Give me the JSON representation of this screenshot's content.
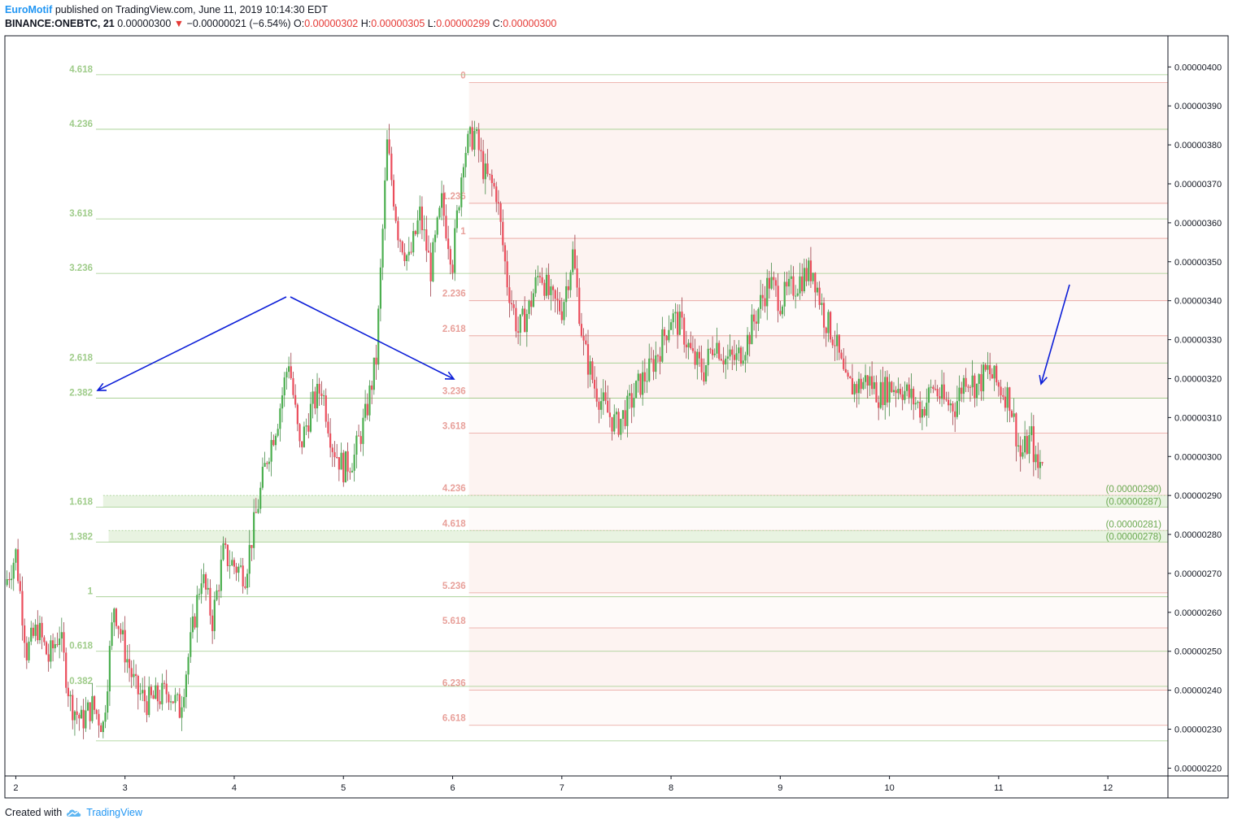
{
  "header": {
    "author": "EuroMotif",
    "published_text": "published on TradingView.com, June 11, 2019 10:14:30 EDT",
    "symbol": "BINANCE:ONEBTC, 21",
    "last": "0.00000300",
    "change_arrow": "▼",
    "change": "−0.00000021 (−6.54%)",
    "o_label": "O:",
    "o_value": "0.00000302",
    "h_label": "H:",
    "h_value": "0.00000305",
    "l_label": "L:",
    "l_value": "0.00000299",
    "c_label": "C:",
    "c_value": "0.00000300"
  },
  "footer": {
    "created_with": "Created with",
    "brand": "TradingView",
    "logo_icon": "tradingview-cloud-icon"
  },
  "colors": {
    "up": "#53b987",
    "up_body": "#4caf50",
    "down": "#eb4d5c",
    "fib_green": "#9fcc8a",
    "fib_red": "#e8a09a",
    "arrow": "#0d1fd8",
    "axis": "#131722"
  },
  "chart_data": {
    "type": "candlestick",
    "y_axis": {
      "min": 2.18e-06,
      "max": 4.08e-06,
      "ticks": [
        "0.00000400",
        "0.00000390",
        "0.00000380",
        "0.00000370",
        "0.00000360",
        "0.00000350",
        "0.00000340",
        "0.00000330",
        "0.00000320",
        "0.00000310",
        "0.00000300",
        "0.00000290",
        "0.00000280",
        "0.00000270",
        "0.00000260",
        "0.00000250",
        "0.00000240",
        "0.00000230",
        "0.00000220"
      ]
    },
    "x_axis": {
      "min": 1.9,
      "max": 12.55,
      "ticks": [
        "2",
        "3",
        "4",
        "5",
        "6",
        "7",
        "8",
        "9",
        "10",
        "11",
        "12"
      ]
    },
    "price_path": [
      [
        1.9,
        2.67e-06
      ],
      [
        2.0,
        2.75e-06
      ],
      [
        2.1,
        2.5e-06
      ],
      [
        2.2,
        2.56e-06
      ],
      [
        2.3,
        2.48e-06
      ],
      [
        2.4,
        2.55e-06
      ],
      [
        2.5,
        2.37e-06
      ],
      [
        2.6,
        2.32e-06
      ],
      [
        2.7,
        2.36e-06
      ],
      [
        2.8,
        2.31e-06
      ],
      [
        2.9,
        2.62e-06
      ],
      [
        3.0,
        2.5e-06
      ],
      [
        3.1,
        2.4e-06
      ],
      [
        3.2,
        2.37e-06
      ],
      [
        3.3,
        2.38e-06
      ],
      [
        3.4,
        2.4e-06
      ],
      [
        3.5,
        2.35e-06
      ],
      [
        3.6,
        2.52e-06
      ],
      [
        3.7,
        2.7e-06
      ],
      [
        3.8,
        2.58e-06
      ],
      [
        3.9,
        2.75e-06
      ],
      [
        4.0,
        2.72e-06
      ],
      [
        4.1,
        2.7e-06
      ],
      [
        4.2,
        2.85e-06
      ],
      [
        4.3,
        3e-06
      ],
      [
        4.4,
        3.1e-06
      ],
      [
        4.5,
        3.25e-06
      ],
      [
        4.6,
        3.02e-06
      ],
      [
        4.7,
        3.12e-06
      ],
      [
        4.8,
        3.18e-06
      ],
      [
        4.9,
        3.03e-06
      ],
      [
        5.0,
        2.97e-06
      ],
      [
        5.1,
        3e-06
      ],
      [
        5.2,
        3.1e-06
      ],
      [
        5.3,
        3.25e-06
      ],
      [
        5.4,
        3.8e-06
      ],
      [
        5.5,
        3.58e-06
      ],
      [
        5.6,
        3.5e-06
      ],
      [
        5.7,
        3.62e-06
      ],
      [
        5.8,
        3.48e-06
      ],
      [
        5.9,
        3.65e-06
      ],
      [
        6.0,
        3.5e-06
      ],
      [
        6.1,
        3.78e-06
      ],
      [
        6.2,
        3.83e-06
      ],
      [
        6.3,
        3.72e-06
      ],
      [
        6.4,
        3.68e-06
      ],
      [
        6.5,
        3.45e-06
      ],
      [
        6.6,
        3.32e-06
      ],
      [
        6.7,
        3.38e-06
      ],
      [
        6.8,
        3.48e-06
      ],
      [
        6.9,
        3.4e-06
      ],
      [
        7.0,
        3.38e-06
      ],
      [
        7.1,
        3.52e-06
      ],
      [
        7.2,
        3.28e-06
      ],
      [
        7.3,
        3.18e-06
      ],
      [
        7.4,
        3.12e-06
      ],
      [
        7.5,
        3.08e-06
      ],
      [
        7.6,
        3.12e-06
      ],
      [
        7.7,
        3.18e-06
      ],
      [
        7.8,
        3.22e-06
      ],
      [
        7.9,
        3.28e-06
      ],
      [
        8.0,
        3.36e-06
      ],
      [
        8.1,
        3.33e-06
      ],
      [
        8.2,
        3.25e-06
      ],
      [
        8.3,
        3.22e-06
      ],
      [
        8.4,
        3.3e-06
      ],
      [
        8.5,
        3.25e-06
      ],
      [
        8.6,
        3.25e-06
      ],
      [
        8.7,
        3.3e-06
      ],
      [
        8.8,
        3.38e-06
      ],
      [
        8.9,
        3.45e-06
      ],
      [
        9.0,
        3.4e-06
      ],
      [
        9.1,
        3.43e-06
      ],
      [
        9.2,
        3.46e-06
      ],
      [
        9.3,
        3.48e-06
      ],
      [
        9.4,
        3.36e-06
      ],
      [
        9.5,
        3.3e-06
      ],
      [
        9.6,
        3.18e-06
      ],
      [
        9.7,
        3.18e-06
      ],
      [
        9.8,
        3.2e-06
      ],
      [
        9.9,
        3.16e-06
      ],
      [
        10.0,
        3.18e-06
      ],
      [
        10.1,
        3.18e-06
      ],
      [
        10.2,
        3.15e-06
      ],
      [
        10.3,
        3.12e-06
      ],
      [
        10.4,
        3.18e-06
      ],
      [
        10.5,
        3.14e-06
      ],
      [
        10.6,
        3.13e-06
      ],
      [
        10.7,
        3.21e-06
      ],
      [
        10.8,
        3.18e-06
      ],
      [
        10.9,
        3.22e-06
      ],
      [
        11.0,
        3.18e-06
      ],
      [
        11.1,
        3.15e-06
      ],
      [
        11.2,
        3e-06
      ],
      [
        11.3,
        3.05e-06
      ],
      [
        11.35,
        2.96e-06
      ],
      [
        11.4,
        3e-06
      ]
    ],
    "fib_extension_green": [
      {
        "label": "4.618",
        "value": 3.98e-06
      },
      {
        "label": "4.236",
        "value": 3.84e-06
      },
      {
        "label": "3.618",
        "value": 3.61e-06
      },
      {
        "label": "3.236",
        "value": 3.47e-06
      },
      {
        "label": "2.618",
        "value": 3.24e-06
      },
      {
        "label": "2.382",
        "value": 3.15e-06
      },
      {
        "label": "1.618",
        "value": 2.87e-06
      },
      {
        "label": "1.382",
        "value": 2.78e-06
      },
      {
        "label": "1",
        "value": 2.64e-06
      },
      {
        "label": "0.618",
        "value": 2.5e-06
      },
      {
        "label": "0.382",
        "value": 2.41e-06
      },
      {
        "label": "",
        "value": 2.27e-06
      }
    ],
    "fib_extension_red": [
      {
        "label": "0",
        "value": 3.96e-06
      },
      {
        "label": "1.236",
        "value": 3.65e-06
      },
      {
        "label": "1",
        "value": 3.56e-06
      },
      {
        "label": "2.236",
        "value": 3.4e-06
      },
      {
        "label": "2.618",
        "value": 3.31e-06
      },
      {
        "label": "3.236",
        "value": 3.15e-06
      },
      {
        "label": "3.618",
        "value": 3.06e-06
      },
      {
        "label": "4.236",
        "value": 2.9e-06
      },
      {
        "label": "4.618",
        "value": 2.81e-06
      },
      {
        "label": "5.236",
        "value": 2.65e-06
      },
      {
        "label": "5.618",
        "value": 2.56e-06
      },
      {
        "label": "6.236",
        "value": 2.4e-06
      },
      {
        "label": "6.618",
        "value": 2.31e-06
      }
    ],
    "zones": [
      {
        "from": 2.87e-06,
        "to": 2.9e-06,
        "label_top": "(0.00000290)",
        "label_bottom": "(0.00000287)"
      },
      {
        "from": 2.78e-06,
        "to": 2.81e-06,
        "label_top": "(0.00000281)",
        "label_bottom": "(0.00000278)"
      }
    ]
  }
}
